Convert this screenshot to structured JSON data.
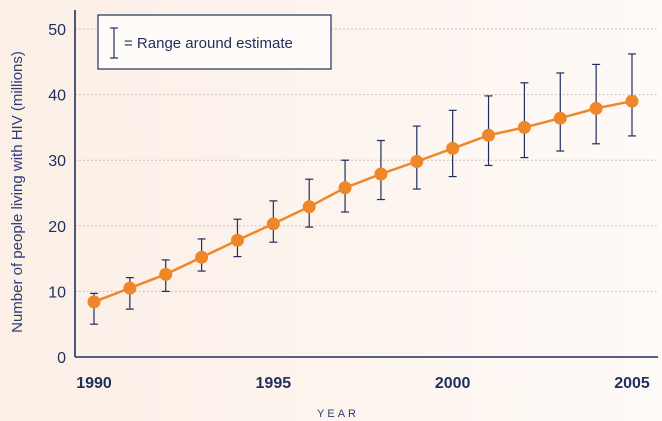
{
  "chart_data": {
    "type": "line",
    "title": "",
    "xlabel": "YEAR",
    "ylabel": "Number of people living with HIV (millions)",
    "ylim": [
      0,
      50
    ],
    "xlim": [
      1990,
      2005
    ],
    "y_ticks": [
      "0",
      "10",
      "20",
      "30",
      "40",
      "50"
    ],
    "x_ticks": [
      "1990",
      "1995",
      "2000",
      "2005"
    ],
    "grid": "horizontal dotted",
    "legend": {
      "text": "= Range around estimate",
      "placement": "top-left"
    },
    "series": [
      {
        "x": [
          1990,
          1991,
          1992,
          1993,
          1994,
          1995,
          1996,
          1997,
          1998,
          1999,
          2000,
          2001,
          2002,
          2003,
          2004,
          2005
        ],
        "values": [
          8.4,
          10.5,
          12.6,
          15.2,
          17.8,
          20.3,
          22.9,
          25.8,
          27.9,
          29.8,
          31.8,
          33.8,
          35.0,
          36.4,
          37.9,
          39.0
        ],
        "low": [
          5.0,
          7.3,
          10.0,
          13.1,
          15.3,
          17.5,
          19.8,
          22.1,
          24.0,
          25.6,
          27.5,
          29.2,
          30.4,
          31.4,
          32.5,
          33.7
        ],
        "high": [
          9.7,
          12.1,
          14.8,
          18.0,
          21.0,
          23.8,
          27.1,
          30.0,
          33.0,
          35.2,
          37.6,
          39.8,
          41.8,
          43.3,
          44.6,
          46.2
        ]
      }
    ],
    "colors": {
      "line": "#f0862a",
      "marker": "#f0862a",
      "errorbar": "#1f2f5c",
      "grid": "#b9b6b3"
    }
  }
}
